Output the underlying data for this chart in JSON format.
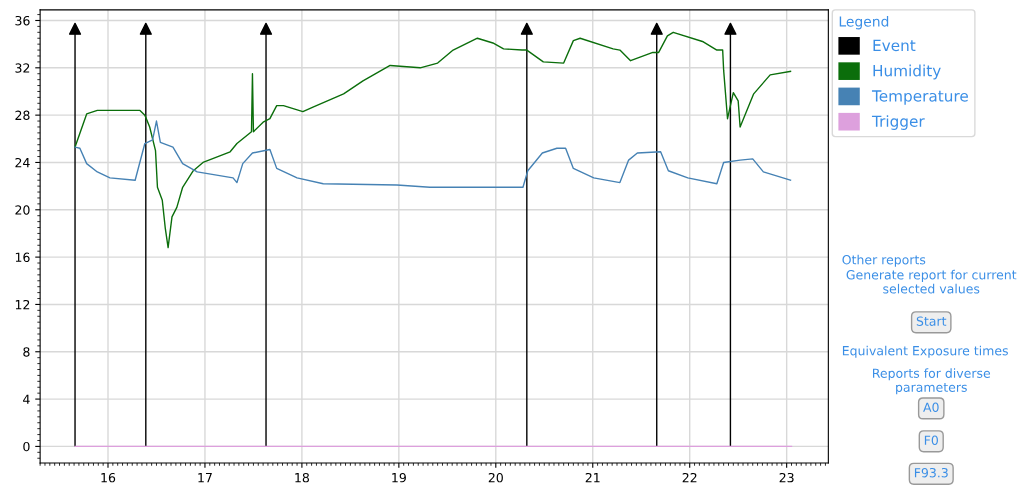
{
  "chart_data": {
    "type": "line",
    "legend_title": "Legend",
    "legend": "right",
    "xlim": [
      15.3,
      23.43
    ],
    "ylim": [
      -1.4,
      36.9
    ],
    "xticks": [
      16,
      17,
      18,
      19,
      20,
      21,
      22,
      23
    ],
    "yticks": [
      0,
      4,
      8,
      12,
      16,
      20,
      24,
      28,
      32,
      36
    ],
    "grid": true,
    "marker": "none",
    "line_style": "solid",
    "series": [
      {
        "name": "Event",
        "type": "lollipop",
        "marker": "triangle",
        "color": "#000000",
        "x": [
          15.66,
          16.39,
          17.63,
          20.32,
          21.66,
          22.42
        ],
        "values": [
          35.3,
          35.3,
          35.3,
          35.3,
          35.3,
          35.3
        ]
      },
      {
        "name": "Humidity",
        "color": "#0b6e0b",
        "x": [
          15.66,
          15.78,
          15.89,
          16.33,
          16.38,
          16.43,
          16.49,
          16.51,
          16.56,
          16.59,
          16.62,
          16.66,
          16.71,
          16.77,
          16.88,
          16.98,
          17.26,
          17.33,
          17.48,
          17.49,
          17.5,
          17.6,
          17.67,
          17.74,
          17.81,
          18.01,
          18.12,
          18.43,
          18.63,
          18.91,
          19.22,
          19.4,
          19.56,
          19.81,
          19.97,
          20.08,
          20.27,
          20.32,
          20.49,
          20.7,
          20.8,
          20.87,
          21.21,
          21.28,
          21.39,
          21.62,
          21.68,
          21.77,
          21.83,
          22.14,
          22.28,
          22.34,
          22.35,
          22.39,
          22.45,
          22.5,
          22.52,
          22.66,
          22.83,
          23.04
        ],
        "values": [
          25.3,
          28.1,
          28.4,
          28.4,
          28.0,
          27.0,
          25.0,
          21.9,
          20.8,
          18.5,
          16.8,
          19.4,
          20.2,
          21.9,
          23.3,
          24.0,
          24.9,
          25.6,
          26.6,
          31.5,
          26.6,
          27.4,
          27.7,
          28.8,
          28.8,
          28.3,
          28.7,
          29.8,
          30.9,
          32.2,
          32.0,
          32.4,
          33.5,
          34.5,
          34.1,
          33.6,
          33.5,
          33.5,
          32.5,
          32.4,
          34.3,
          34.5,
          33.6,
          33.5,
          32.6,
          33.3,
          33.3,
          34.7,
          35.0,
          34.2,
          33.5,
          33.5,
          31.8,
          27.7,
          29.9,
          29.2,
          27.0,
          29.8,
          31.4,
          31.7
        ]
      },
      {
        "name": "Temperature",
        "color": "#4682b4",
        "x": [
          15.66,
          15.71,
          15.78,
          15.89,
          16.02,
          16.28,
          16.38,
          16.46,
          16.5,
          16.54,
          16.67,
          16.77,
          16.92,
          17.29,
          17.33,
          17.36,
          17.39,
          17.49,
          17.67,
          17.74,
          17.95,
          18.22,
          18.98,
          19.32,
          20.28,
          20.33,
          20.48,
          20.63,
          20.72,
          20.8,
          21.01,
          21.28,
          21.37,
          21.46,
          21.7,
          21.78,
          21.98,
          22.28,
          22.35,
          22.52,
          22.65,
          22.76,
          23.04
        ],
        "values": [
          25.3,
          25.2,
          23.9,
          23.2,
          22.7,
          22.5,
          25.6,
          25.9,
          27.5,
          25.7,
          25.3,
          23.9,
          23.2,
          22.7,
          22.3,
          23.1,
          23.9,
          24.8,
          25.1,
          23.5,
          22.7,
          22.2,
          22.1,
          21.9,
          21.9,
          23.3,
          24.8,
          25.2,
          25.2,
          23.5,
          22.7,
          22.3,
          24.2,
          24.8,
          24.9,
          23.3,
          22.7,
          22.2,
          24.0,
          24.2,
          24.3,
          23.2,
          22.5
        ]
      },
      {
        "name": "Trigger",
        "color": "#dda0dd",
        "x": [
          15.66,
          23.05
        ],
        "values": [
          0,
          0
        ]
      }
    ],
    "annotations": [
      "Other reports",
      "Generate report for current selected values",
      "Start",
      "Equivalent Exposure times",
      "Reports for diverse parameters",
      "A0",
      "F0",
      "F93.3"
    ]
  }
}
